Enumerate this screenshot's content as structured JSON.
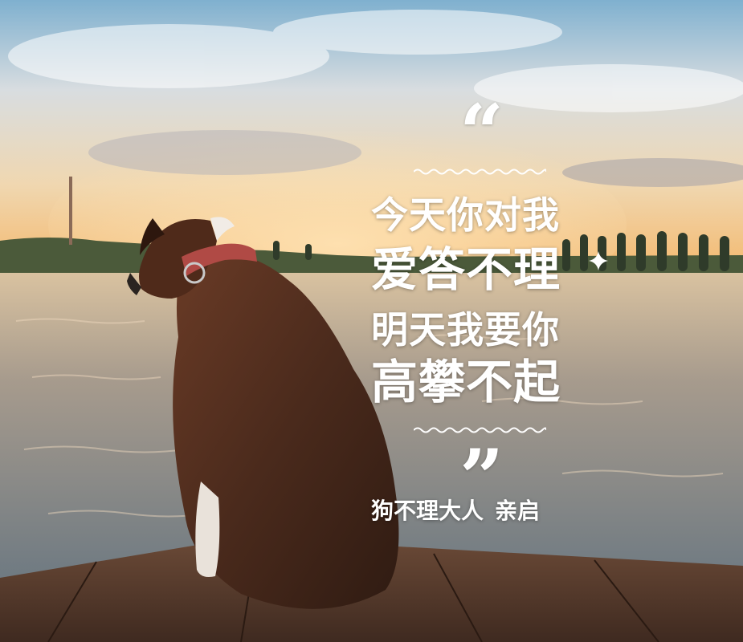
{
  "poster": {
    "quote_open": "“",
    "quote_close": "”",
    "lines": [
      "今天你对我",
      "爱答不理",
      "明天我要你",
      "高攀不起"
    ],
    "signature_name": "狗不理大人",
    "signature_action": "亲启"
  },
  "colors": {
    "text": "#ffffff",
    "sky_top": "#6fa7c9",
    "horizon": "#f2c98f",
    "water": "#8f8a85",
    "dock": "#5a3c2c",
    "dog_coat": "#5b3323",
    "collar": "#b04a45"
  },
  "scene": {
    "subject": "dog",
    "setting": "lakeside-dock-sunset"
  }
}
